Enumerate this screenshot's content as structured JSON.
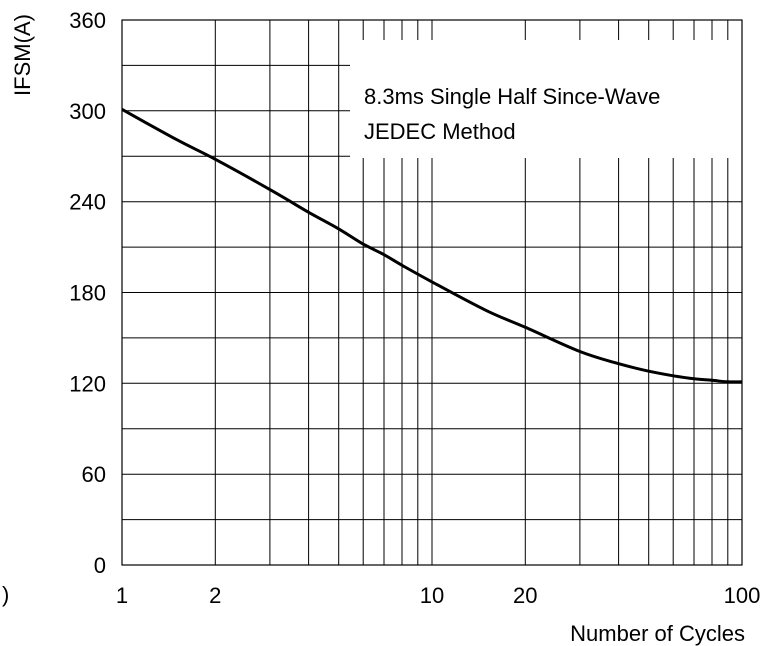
{
  "chart_data": {
    "type": "line",
    "title": "",
    "xlabel": "Number of Cycles",
    "ylabel": "IFSM(A)",
    "x_scale": "log",
    "xlim": [
      1,
      100
    ],
    "ylim": [
      0,
      360
    ],
    "grid": true,
    "x_tick_labels": [
      {
        "value": 1,
        "label": "1"
      },
      {
        "value": 2,
        "label": "2"
      },
      {
        "value": 10,
        "label": "10"
      },
      {
        "value": 20,
        "label": "20"
      },
      {
        "value": 100,
        "label": "100"
      }
    ],
    "y_tick_labels": [
      {
        "value": 0,
        "label": "0"
      },
      {
        "value": 60,
        "label": "60"
      },
      {
        "value": 120,
        "label": "120"
      },
      {
        "value": 180,
        "label": "180"
      },
      {
        "value": 240,
        "label": "240"
      },
      {
        "value": 300,
        "label": "300"
      },
      {
        "value": 360,
        "label": "360"
      }
    ],
    "x_gridlines": [
      1,
      2,
      3,
      4,
      5,
      6,
      7,
      8,
      9,
      10,
      20,
      30,
      40,
      50,
      60,
      70,
      80,
      90,
      100
    ],
    "y_gridlines": [
      0,
      30,
      60,
      90,
      120,
      150,
      180,
      210,
      240,
      270,
      300,
      330,
      360
    ],
    "annotation": [
      "8.3ms Single Half Since-Wave",
      "JEDEC Method"
    ],
    "series": [
      {
        "color": "#000000",
        "x": [
          1,
          1.5,
          2,
          3,
          4,
          5,
          6,
          7,
          8,
          10,
          15,
          20,
          30,
          40,
          50,
          60,
          70,
          80,
          90,
          100
        ],
        "y": [
          301,
          281,
          268,
          248,
          233,
          222,
          212,
          205,
          198,
          187,
          168,
          157,
          141,
          133,
          128,
          125,
          123,
          122,
          121,
          121
        ]
      }
    ]
  },
  "stray_mark": ")"
}
